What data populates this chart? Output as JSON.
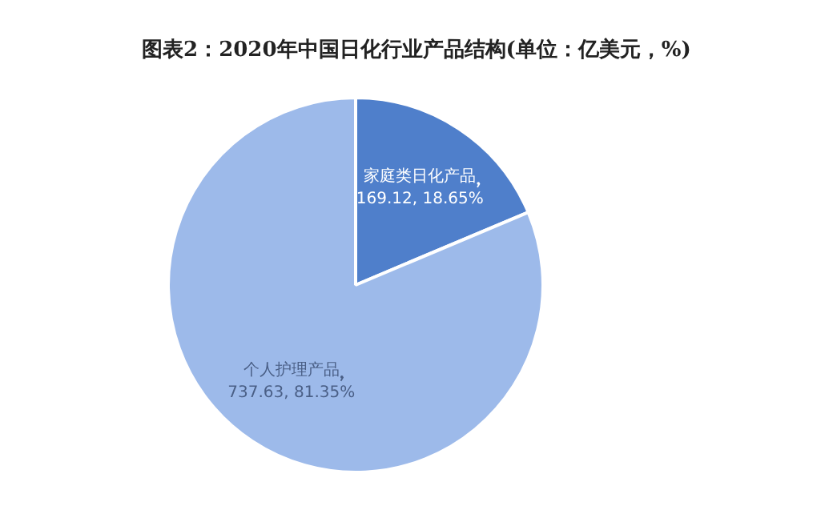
{
  "chart_data": {
    "type": "pie",
    "title": "图表2：2020年中国日化行业产品结构(单位：亿美元，%)",
    "categories": [
      "家庭类日化产品",
      "个人护理产品"
    ],
    "values": [
      169.12,
      737.63
    ],
    "colors": [
      "#4f7fcb",
      "#9dbaea"
    ],
    "value_labels": [
      "169.12, 18.65%",
      "737.63, 81.35%"
    ],
    "legend": false
  }
}
